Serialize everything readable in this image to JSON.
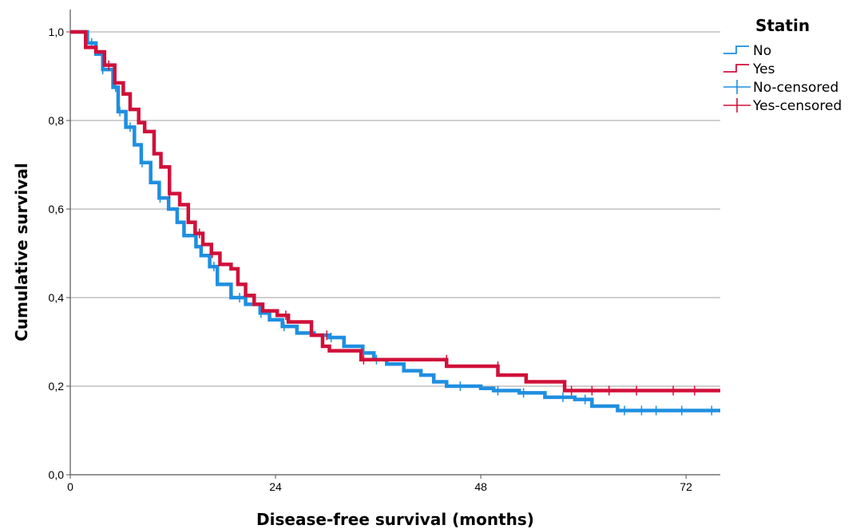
{
  "chart_data": {
    "type": "line",
    "subtype": "kaplan-meier-step",
    "xlabel": "Disease-free survival (months)",
    "ylabel": "Cumulative survival",
    "xlim": [
      0,
      76
    ],
    "ylim": [
      0,
      1.0
    ],
    "xticks": [
      {
        "value": 0,
        "label": "0"
      },
      {
        "value": 24,
        "label": "24"
      },
      {
        "value": 48,
        "label": "48"
      },
      {
        "value": 72,
        "label": "72"
      }
    ],
    "yticks": [
      {
        "value": 0.0,
        "label": "0,0"
      },
      {
        "value": 0.2,
        "label": "0,2"
      },
      {
        "value": 0.4,
        "label": "0,4"
      },
      {
        "value": 0.6,
        "label": "0,6"
      },
      {
        "value": 0.8,
        "label": "0,8"
      },
      {
        "value": 1.0,
        "label": "1,0"
      }
    ],
    "grid": {
      "horizontal": true,
      "vertical": false
    },
    "legend": {
      "title": "Statin",
      "position": "top-right",
      "entries": [
        {
          "label": "No",
          "kind": "line",
          "series": "No"
        },
        {
          "label": "Yes",
          "kind": "line",
          "series": "Yes"
        },
        {
          "label": "No-censored",
          "kind": "censor",
          "series": "No"
        },
        {
          "label": "Yes-censored",
          "kind": "censor",
          "series": "Yes"
        }
      ]
    },
    "series": [
      {
        "name": "No",
        "color": "#1f8fe0",
        "steps": [
          [
            0,
            1.0
          ],
          [
            2,
            0.975
          ],
          [
            3,
            0.95
          ],
          [
            3.8,
            0.915
          ],
          [
            5,
            0.875
          ],
          [
            5.6,
            0.82
          ],
          [
            6.5,
            0.785
          ],
          [
            7.5,
            0.745
          ],
          [
            8.3,
            0.705
          ],
          [
            9.4,
            0.66
          ],
          [
            10.4,
            0.625
          ],
          [
            11.5,
            0.6
          ],
          [
            12.5,
            0.57
          ],
          [
            13.3,
            0.54
          ],
          [
            14.7,
            0.515
          ],
          [
            15.3,
            0.495
          ],
          [
            16.3,
            0.47
          ],
          [
            17.2,
            0.43
          ],
          [
            18.8,
            0.4
          ],
          [
            20.5,
            0.385
          ],
          [
            22.2,
            0.365
          ],
          [
            23.3,
            0.35
          ],
          [
            24.8,
            0.335
          ],
          [
            26.5,
            0.32
          ],
          [
            28.5,
            0.315
          ],
          [
            30.3,
            0.31
          ],
          [
            32,
            0.29
          ],
          [
            34.2,
            0.275
          ],
          [
            35.5,
            0.26
          ],
          [
            37,
            0.25
          ],
          [
            39,
            0.235
          ],
          [
            41,
            0.225
          ],
          [
            42.5,
            0.21
          ],
          [
            44,
            0.2
          ],
          [
            48,
            0.195
          ],
          [
            49.5,
            0.19
          ],
          [
            52.5,
            0.185
          ],
          [
            55.5,
            0.175
          ],
          [
            59,
            0.17
          ],
          [
            61,
            0.155
          ],
          [
            64,
            0.145
          ],
          [
            76,
            0.145
          ]
        ],
        "censored": [
          [
            2.5,
            0.975
          ],
          [
            3.8,
            0.915
          ],
          [
            5.3,
            0.875
          ],
          [
            5.8,
            0.82
          ],
          [
            7,
            0.785
          ],
          [
            8.4,
            0.705
          ],
          [
            10.5,
            0.625
          ],
          [
            14.6,
            0.54
          ],
          [
            16.8,
            0.47
          ],
          [
            19.8,
            0.4
          ],
          [
            22.3,
            0.365
          ],
          [
            25,
            0.335
          ],
          [
            30.5,
            0.31
          ],
          [
            35.8,
            0.26
          ],
          [
            45.6,
            0.2
          ],
          [
            50,
            0.19
          ],
          [
            53,
            0.185
          ],
          [
            57.6,
            0.175
          ],
          [
            60.2,
            0.17
          ],
          [
            64.8,
            0.145
          ],
          [
            66.8,
            0.145
          ],
          [
            68.5,
            0.145
          ],
          [
            71.5,
            0.145
          ],
          [
            75,
            0.145
          ]
        ]
      },
      {
        "name": "Yes",
        "color": "#d0103a",
        "steps": [
          [
            0,
            1.0
          ],
          [
            1.8,
            0.965
          ],
          [
            3,
            0.955
          ],
          [
            4,
            0.925
          ],
          [
            5.2,
            0.885
          ],
          [
            6.2,
            0.86
          ],
          [
            7,
            0.825
          ],
          [
            8,
            0.795
          ],
          [
            8.7,
            0.775
          ],
          [
            9.8,
            0.725
          ],
          [
            10.6,
            0.695
          ],
          [
            11.6,
            0.635
          ],
          [
            12.8,
            0.61
          ],
          [
            13.8,
            0.57
          ],
          [
            14.6,
            0.545
          ],
          [
            15.5,
            0.52
          ],
          [
            16.5,
            0.5
          ],
          [
            17.5,
            0.475
          ],
          [
            18.8,
            0.465
          ],
          [
            19.6,
            0.43
          ],
          [
            20.5,
            0.405
          ],
          [
            21.5,
            0.385
          ],
          [
            22.5,
            0.37
          ],
          [
            24.2,
            0.36
          ],
          [
            25.5,
            0.345
          ],
          [
            28.2,
            0.315
          ],
          [
            29.5,
            0.29
          ],
          [
            30.3,
            0.28
          ],
          [
            34,
            0.26
          ],
          [
            44,
            0.245
          ],
          [
            50,
            0.225
          ],
          [
            53.3,
            0.21
          ],
          [
            57.8,
            0.19
          ],
          [
            76,
            0.19
          ]
        ],
        "censored": [
          [
            4.5,
            0.925
          ],
          [
            11.6,
            0.635
          ],
          [
            15.1,
            0.545
          ],
          [
            16.6,
            0.5
          ],
          [
            25.2,
            0.36
          ],
          [
            30,
            0.315
          ],
          [
            34.3,
            0.26
          ],
          [
            44,
            0.26
          ],
          [
            50,
            0.245
          ],
          [
            58.6,
            0.19
          ],
          [
            61,
            0.19
          ],
          [
            63,
            0.19
          ],
          [
            66.2,
            0.19
          ],
          [
            70.5,
            0.19
          ],
          [
            73,
            0.19
          ]
        ]
      }
    ]
  }
}
